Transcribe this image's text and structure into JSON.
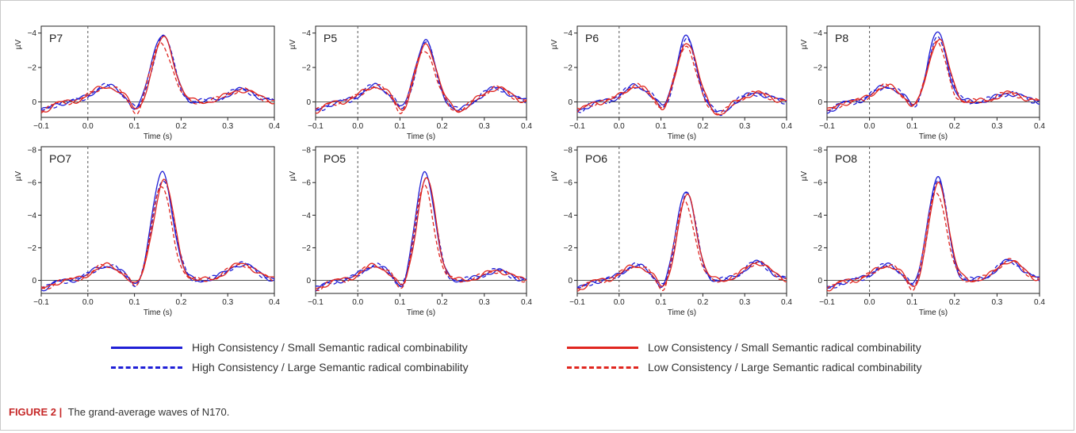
{
  "chart_data": [
    {
      "type": "line",
      "panel": "P7",
      "ylabel": "µV",
      "xlabel": "Time (s)",
      "xlim": [
        -0.1,
        0.4
      ],
      "ylim": [
        0.9,
        -4.4
      ],
      "yticks": [
        0,
        -2,
        -4
      ],
      "xticks": [
        -0.1,
        0.0,
        0.1,
        0.2,
        0.3,
        0.4
      ],
      "tick_labels": {
        "x": [
          "−0.1",
          "0.0",
          "0.1",
          "0.2",
          "0.3",
          "0.4"
        ],
        "y": [
          "0",
          "−2",
          "−4"
        ]
      },
      "peak": -4.0,
      "dip": 0.6,
      "late": -0.7,
      "late2": 0
    },
    {
      "type": "line",
      "panel": "P5",
      "ylabel": "µV",
      "xlabel": "Time (s)",
      "xlim": [
        -0.1,
        0.4
      ],
      "ylim": [
        0.9,
        -4.4
      ],
      "yticks": [
        0,
        -2,
        -4
      ],
      "xticks": [
        -0.1,
        0.0,
        0.1,
        0.2,
        0.3,
        0.4
      ],
      "tick_labels": {
        "x": [
          "−0.1",
          "0.0",
          "0.1",
          "0.2",
          "0.3",
          "0.4"
        ],
        "y": [
          "0",
          "−2",
          "−4"
        ]
      },
      "peak": -3.6,
      "dip": 0.6,
      "late": -0.8,
      "late2": 0.5
    },
    {
      "type": "line",
      "panel": "P6",
      "ylabel": "µV",
      "xlabel": "Time (s)",
      "xlim": [
        -0.1,
        0.4
      ],
      "ylim": [
        0.9,
        -4.4
      ],
      "yticks": [
        0,
        -2,
        -4
      ],
      "xticks": [
        -0.1,
        0.0,
        0.1,
        0.2,
        0.3,
        0.4
      ],
      "tick_labels": {
        "x": [
          "−0.1",
          "0.0",
          "0.1",
          "0.2",
          "0.3",
          "0.4"
        ],
        "y": [
          "0",
          "−2",
          "−4"
        ]
      },
      "peak": -3.8,
      "dip": 0.5,
      "late": -0.5,
      "late2": 0.7
    },
    {
      "type": "line",
      "panel": "P8",
      "ylabel": "µV",
      "xlabel": "Time (s)",
      "xlim": [
        -0.1,
        0.4
      ],
      "ylim": [
        0.9,
        -4.4
      ],
      "yticks": [
        0,
        -2,
        -4
      ],
      "xticks": [
        -0.1,
        0.0,
        0.1,
        0.2,
        0.3,
        0.4
      ],
      "tick_labels": {
        "x": [
          "−0.1",
          "0.0",
          "0.1",
          "0.2",
          "0.3",
          "0.4"
        ],
        "y": [
          "0",
          "−2",
          "−4"
        ]
      },
      "peak": -4.0,
      "dip": 0.4,
      "late": -0.5,
      "late2": 0
    },
    {
      "type": "line",
      "panel": "PO7",
      "ylabel": "µV",
      "xlabel": "Time (s)",
      "xlim": [
        -0.1,
        0.4
      ],
      "ylim": [
        0.8,
        -8.2
      ],
      "yticks": [
        0,
        -2,
        -4,
        -6,
        -8
      ],
      "xticks": [
        -0.1,
        0.0,
        0.1,
        0.2,
        0.3,
        0.4
      ],
      "tick_labels": {
        "x": [
          "−0.1",
          "0.0",
          "0.1",
          "0.2",
          "0.3",
          "0.4"
        ],
        "y": [
          "0",
          "−2",
          "−4",
          "−6",
          "−8"
        ]
      },
      "peak": -6.6,
      "dip": 0.5,
      "late": -1.0,
      "late2": 0
    },
    {
      "type": "line",
      "panel": "PO5",
      "ylabel": "µV",
      "xlabel": "Time (s)",
      "xlim": [
        -0.1,
        0.4
      ],
      "ylim": [
        0.8,
        -8.2
      ],
      "yticks": [
        0,
        -2,
        -4,
        -6,
        -8
      ],
      "xticks": [
        -0.1,
        0.0,
        0.1,
        0.2,
        0.3,
        0.4
      ],
      "tick_labels": {
        "x": [
          "−0.1",
          "0.0",
          "0.1",
          "0.2",
          "0.3",
          "0.4"
        ],
        "y": [
          "0",
          "−2",
          "−4",
          "−6",
          "−8"
        ]
      },
      "peak": -6.7,
      "dip": 0.6,
      "late": -0.6,
      "late2": 0
    },
    {
      "type": "line",
      "panel": "PO6",
      "ylabel": "µV",
      "xlabel": "Time (s)",
      "xlim": [
        -0.1,
        0.4
      ],
      "ylim": [
        0.8,
        -8.2
      ],
      "yticks": [
        0,
        -2,
        -4,
        -6,
        -8
      ],
      "xticks": [
        -0.1,
        0.0,
        0.1,
        0.2,
        0.3,
        0.4
      ],
      "tick_labels": {
        "x": [
          "−0.1",
          "0.0",
          "0.1",
          "0.2",
          "0.3",
          "0.4"
        ],
        "y": [
          "0",
          "−2",
          "−4",
          "−6",
          "−8"
        ]
      },
      "peak": -5.6,
      "dip": 0.6,
      "late": -1.1,
      "late2": 0
    },
    {
      "type": "line",
      "panel": "PO8",
      "ylabel": "µV",
      "xlabel": "Time (s)",
      "xlim": [
        -0.1,
        0.4
      ],
      "ylim": [
        0.8,
        -8.2
      ],
      "yticks": [
        0,
        -2,
        -4,
        -6,
        -8
      ],
      "xticks": [
        -0.1,
        0.0,
        0.1,
        0.2,
        0.3,
        0.4
      ],
      "tick_labels": {
        "x": [
          "−0.1",
          "0.0",
          "0.1",
          "0.2",
          "0.3",
          "0.4"
        ],
        "y": [
          "0",
          "−2",
          "−4",
          "−6",
          "−8"
        ]
      },
      "peak": -6.4,
      "dip": 0.6,
      "late": -1.2,
      "late2": 0
    }
  ],
  "series": [
    {
      "name": "High Consistency / Small Semantic radical combinability",
      "color": "#1f1fd6",
      "dash": "solid",
      "scale": 1.0,
      "shift": 0.0
    },
    {
      "name": "High Consistency / Large Semantic radical combinability",
      "color": "#1f1fd6",
      "dash": "dashed",
      "scale": 0.95,
      "shift": 0.002
    },
    {
      "name": "Low Consistency / Small Semantic radical combinability",
      "color": "#e0261f",
      "dash": "solid",
      "scale": 0.93,
      "shift": 0.003
    },
    {
      "name": "Low Consistency / Large Semantic radical combinability",
      "color": "#e0261f",
      "dash": "dashed",
      "scale": 0.86,
      "shift": -0.002
    }
  ],
  "caption": {
    "label": "FIGURE 2 |",
    "text": "The grand-average waves of N170."
  }
}
